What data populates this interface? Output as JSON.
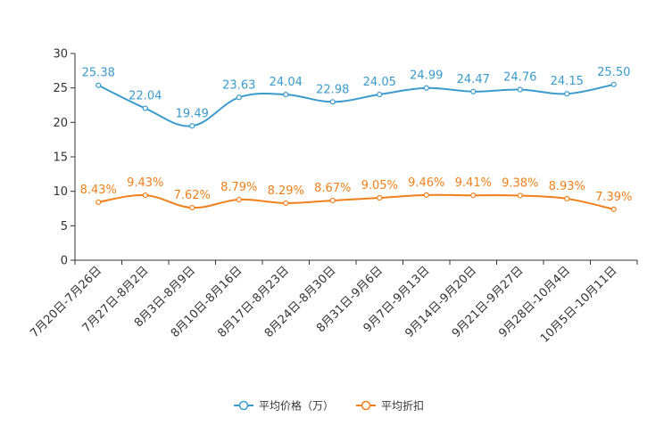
{
  "chart_data": {
    "type": "line",
    "categories": [
      "7月20日-7月26日",
      "7月27日-8月2日",
      "8月3日-8月9日",
      "8月10日-8月16日",
      "8月17日-8月23日",
      "8月24日-8月30日",
      "8月31日-9月6日",
      "9月7日-9月13日",
      "9月14日-9月20日",
      "9月21日-9月27日",
      "9月28日-10月4日",
      "10月5日-10月11日"
    ],
    "ylim": [
      0,
      30
    ],
    "yticks": [
      0,
      5,
      10,
      15,
      20,
      25,
      30
    ],
    "legend_position": "bottom-center",
    "series": [
      {
        "name": "平均价格（万）",
        "color": "#3a9bcc",
        "values": [
          25.38,
          22.04,
          19.49,
          23.63,
          24.04,
          22.98,
          24.05,
          24.99,
          24.47,
          24.76,
          24.15,
          25.5
        ],
        "labels": [
          "25.38",
          "22.04",
          "19.49",
          "23.63",
          "24.04",
          "22.98",
          "24.05",
          "24.99",
          "24.47",
          "24.76",
          "24.15",
          "25.50"
        ]
      },
      {
        "name": "平均折扣",
        "color": "#f0801a",
        "values": [
          8.43,
          9.43,
          7.62,
          8.79,
          8.29,
          8.67,
          9.05,
          9.46,
          9.41,
          9.38,
          8.93,
          7.39
        ],
        "labels": [
          "8.43%",
          "9.43%",
          "7.62%",
          "8.79%",
          "8.29%",
          "8.67%",
          "9.05%",
          "9.46%",
          "9.41%",
          "9.38%",
          "8.93%",
          "7.39%"
        ]
      }
    ]
  }
}
